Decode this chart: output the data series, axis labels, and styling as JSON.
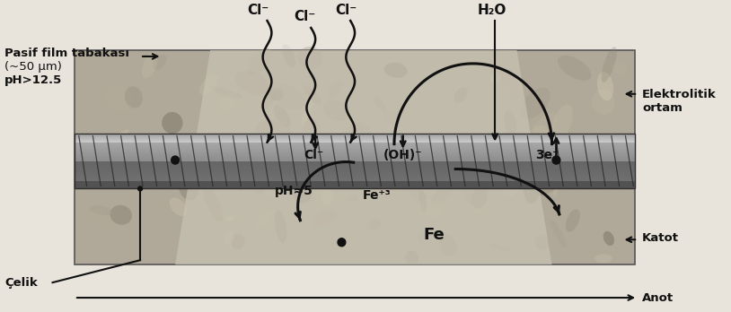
{
  "fig_width": 8.14,
  "fig_height": 3.48,
  "dpi": 100,
  "bg_color": "#e8e4dc",
  "concrete_light": "#c8c4b8",
  "concrete_dark": "#888078",
  "steel_mid": "#686868",
  "steel_light": "#909090",
  "steel_dark": "#383838",
  "anodic_color": "#d0ccc0",
  "text_color": "#111111",
  "arrow_color": "#111111",
  "label_left_top": "Pasif film tabakası",
  "label_left_mid": "(~50 μm)",
  "label_left_bot": "pH>12.5",
  "label_right_top": "Elektrolitik",
  "label_right_bot": "ortam",
  "label_cl1": "Cl⁻",
  "label_cl2": "Cl⁻",
  "label_cl3": "Cl⁻",
  "label_h2o": "H₂O",
  "label_cl_mid": "Cl⁻",
  "label_oh": "(OH)⁻",
  "label_3e": "3e⁻",
  "label_ph5": "pH≈5",
  "label_fe3": "Fe⁺³",
  "label_Fe": "Fe",
  "label_celik": "Çelik",
  "label_katot": "Katot",
  "label_anot": "Anot"
}
